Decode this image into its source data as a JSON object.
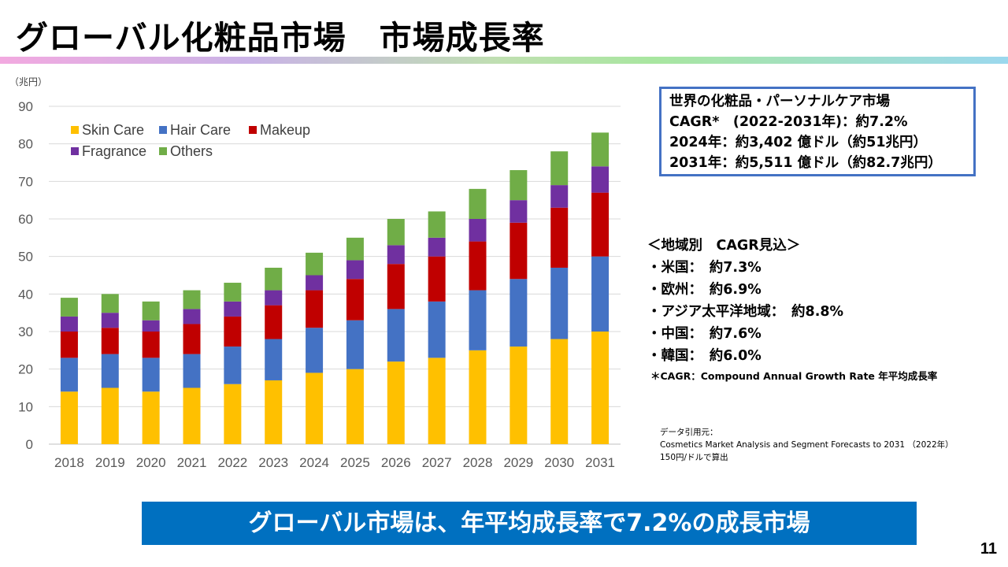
{
  "header": {
    "title": "グローバル化粧品市場　市場成長率"
  },
  "chart_data": {
    "type": "bar",
    "stacked": true,
    "unit_label": "（兆円）",
    "categories": [
      "2018",
      "2019",
      "2020",
      "2021",
      "2022",
      "2023",
      "2024",
      "2025",
      "2026",
      "2027",
      "2028",
      "2029",
      "2030",
      "2031"
    ],
    "series": [
      {
        "name": "Skin Care",
        "color": "#ffc000",
        "values": [
          14,
          15,
          14,
          15,
          16,
          17,
          19,
          20,
          22,
          23,
          25,
          26,
          28,
          30
        ]
      },
      {
        "name": "Hair Care",
        "color": "#4472c4",
        "values": [
          9,
          9,
          9,
          9,
          10,
          11,
          12,
          13,
          14,
          15,
          16,
          18,
          19,
          20
        ]
      },
      {
        "name": "Makeup",
        "color": "#c00000",
        "values": [
          7,
          7,
          7,
          8,
          8,
          9,
          10,
          11,
          12,
          12,
          13,
          15,
          16,
          17
        ]
      },
      {
        "name": "Fragrance",
        "color": "#7030a0",
        "values": [
          4,
          4,
          3,
          4,
          4,
          4,
          4,
          5,
          5,
          5,
          6,
          6,
          6,
          7
        ]
      },
      {
        "name": "Others",
        "color": "#70ad47",
        "values": [
          5,
          5,
          5,
          5,
          5,
          6,
          6,
          6,
          7,
          7,
          8,
          8,
          9,
          9
        ]
      }
    ],
    "yticks": [
      0,
      10,
      20,
      30,
      40,
      50,
      60,
      70,
      80,
      90
    ],
    "ylim": [
      0,
      90
    ],
    "grid": true,
    "legend_position": "top-left"
  },
  "summary": {
    "line1": "世界の化粧品・パーソナルケア市場",
    "line2": "CAGR*　(2022-2031年)：約7.2%",
    "line3": "2024年：約3,402 億ドル（約51兆円）",
    "line4": "2031年：約5,511 億ドル（約82.7兆円）"
  },
  "regional": {
    "heading": "＜地域別　CAGR見込＞",
    "items": [
      "・米国：　約7.3%",
      "・欧州：　約6.9%",
      "・アジア太平洋地域：　約8.8%",
      "・中国：　約7.6%",
      "・韓国：　約6.0%"
    ]
  },
  "notes": {
    "cagr": "＊CAGR：Compound Annual Growth Rate 年平均成長率",
    "source_title": "データ引用元：",
    "source_line": "Cosmetics Market Analysis and Segment Forecasts to 2031 （2022年）",
    "rate_line": "150円/ドルで算出"
  },
  "banner": {
    "text": "グローバル市場は、年平均成長率で7.2%の成長市場"
  },
  "page_number": "11"
}
